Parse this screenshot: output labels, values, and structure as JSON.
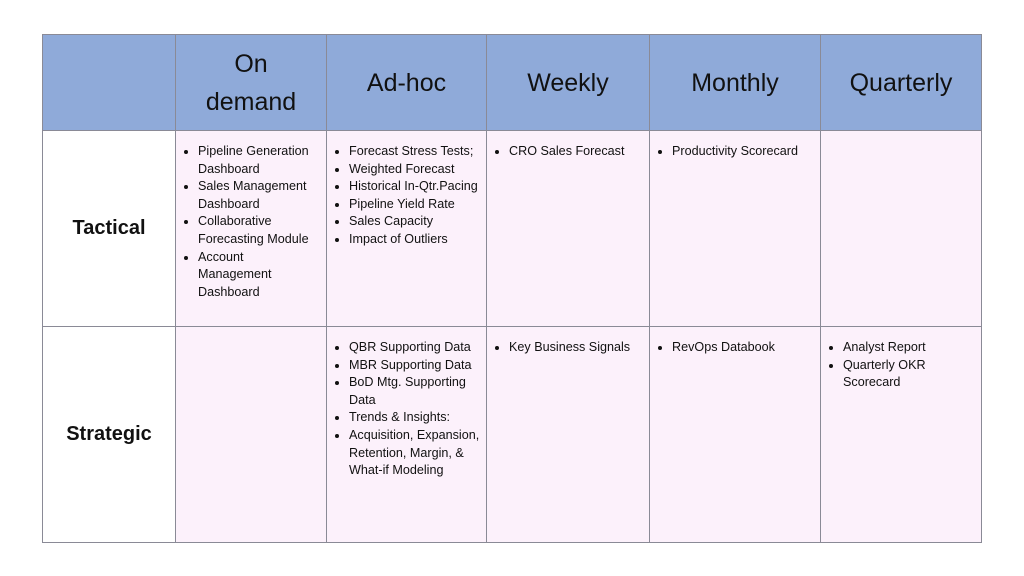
{
  "table": {
    "columns": [
      "",
      "On demand",
      "Ad-hoc",
      "Weekly",
      "Monthly",
      "Quarterly"
    ],
    "rows": [
      {
        "label": "Tactical",
        "cells": [
          [
            "Pipeline Generation Dashboard",
            "Sales Management Dashboard",
            "Collaborative Forecasting Module",
            "Account Management Dashboard"
          ],
          [
            "Forecast Stress Tests;",
            "Weighted Forecast",
            "Historical In-Qtr.Pacing",
            "Pipeline Yield Rate",
            "Sales Capacity",
            "Impact of Outliers"
          ],
          [
            "CRO Sales Forecast"
          ],
          [
            "Productivity Scorecard"
          ],
          []
        ]
      },
      {
        "label": "Strategic",
        "cells": [
          [],
          [
            "QBR Supporting Data",
            "MBR Supporting Data",
            "BoD Mtg. Supporting Data",
            "Trends & Insights:",
            " Acquisition, Expansion, Retention, Margin, & What-if Modeling"
          ],
          [
            "Key Business Signals"
          ],
          [
            "RevOps Databook"
          ],
          [
            "Analyst Report",
            "Quarterly OKR Scorecard"
          ]
        ]
      }
    ]
  },
  "colors": {
    "header": "#8faad9",
    "cell": "#fcf1fb",
    "border": "#8a8a96"
  }
}
